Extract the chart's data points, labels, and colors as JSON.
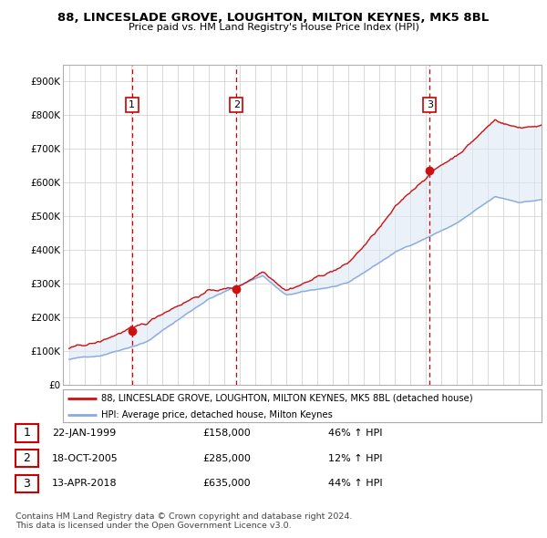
{
  "title": "88, LINCESLADE GROVE, LOUGHTON, MILTON KEYNES, MK5 8BL",
  "subtitle": "Price paid vs. HM Land Registry's House Price Index (HPI)",
  "ylim": [
    0,
    950000
  ],
  "yticks": [
    0,
    100000,
    200000,
    300000,
    400000,
    500000,
    600000,
    700000,
    800000,
    900000
  ],
  "sale_dates_num": [
    1999.06,
    2005.8,
    2018.28
  ],
  "sale_prices": [
    158000,
    285000,
    635000
  ],
  "sale_labels": [
    "1",
    "2",
    "3"
  ],
  "vline_color": "#cc0000",
  "red_line_color": "#cc1111",
  "blue_line_color": "#88aadd",
  "fill_color": "#dde8f5",
  "legend_line1": "88, LINCESLADE GROVE, LOUGHTON, MILTON KEYNES, MK5 8BL (detached house)",
  "legend_line2": "HPI: Average price, detached house, Milton Keynes",
  "table_data": [
    [
      "1",
      "22-JAN-1999",
      "£158,000",
      "46% ↑ HPI"
    ],
    [
      "2",
      "18-OCT-2005",
      "£285,000",
      "12% ↑ HPI"
    ],
    [
      "3",
      "13-APR-2018",
      "£635,000",
      "44% ↑ HPI"
    ]
  ],
  "footer": "Contains HM Land Registry data © Crown copyright and database right 2024.\nThis data is licensed under the Open Government Licence v3.0.",
  "background_color": "#ffffff",
  "grid_color": "#cccccc"
}
